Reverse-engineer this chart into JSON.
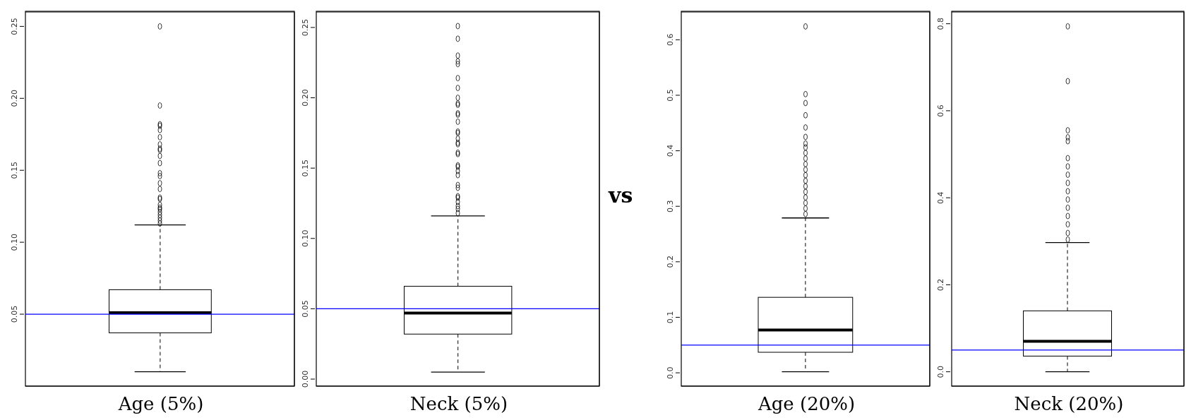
{
  "chart_data": [
    {
      "type": "box",
      "xlabel": "Age (5%)",
      "categories": [
        null
      ],
      "color": "#000000",
      "boxes": [
        {
          "low": 0.01,
          "q1": 0.037,
          "median": 0.051,
          "q3": 0.067,
          "high": 0.112,
          "outliers": [
            0.25,
            0.195,
            0.182,
            0.181,
            0.178,
            0.173,
            0.168,
            0.165,
            0.164,
            0.16,
            0.155,
            0.148,
            0.146,
            0.141,
            0.137,
            0.131,
            0.13,
            0.126,
            0.124,
            0.123,
            0.121,
            0.119,
            0.117,
            0.115,
            0.113
          ]
        }
      ],
      "ylim": [
        0.0,
        0.26
      ],
      "yticks": [
        0.05,
        {
          "value": 0.1,
          "label": "0.10"
        },
        0.15,
        {
          "value": 0.2,
          "label": "0.20"
        },
        0.25
      ],
      "ref_lines": [
        {
          "axis": "y",
          "value": 0.05,
          "color": "#0000ff"
        }
      ]
    },
    {
      "type": "box",
      "xlabel": "Neck (5%)",
      "categories": [
        null
      ],
      "color": "#000000",
      "boxes": [
        {
          "low": 0.005,
          "q1": 0.032,
          "median": 0.047,
          "q3": 0.066,
          "high": 0.116,
          "outliers": [
            0.251,
            0.242,
            0.23,
            0.226,
            0.224,
            0.214,
            0.207,
            0.2,
            0.196,
            0.195,
            0.189,
            0.188,
            0.183,
            0.176,
            0.175,
            0.171,
            0.168,
            0.167,
            0.161,
            0.16,
            0.152,
            0.151,
            0.148,
            0.145,
            0.138,
            0.136,
            0.13,
            0.129,
            0.126,
            0.123,
            0.121,
            0.118
          ]
        }
      ],
      "ylim": [
        -0.005,
        0.261
      ],
      "yticks": [
        {
          "value": 0,
          "label": "0.00"
        },
        0.05,
        {
          "value": 0.1,
          "label": "0.10"
        },
        0.15,
        {
          "value": 0.2,
          "label": "0.20"
        },
        0.25
      ],
      "ref_lines": [
        {
          "axis": "y",
          "value": 0.05,
          "color": "#0000ff"
        }
      ]
    },
    {
      "type": "box",
      "xlabel": "Age (20%)",
      "categories": [
        null
      ],
      "color": "#000000",
      "annotations": [
        "vs"
      ],
      "boxes": [
        {
          "low": 0.002,
          "q1": 0.037,
          "median": 0.077,
          "q3": 0.136,
          "high": 0.279,
          "outliers": [
            0.624,
            0.502,
            0.486,
            0.464,
            0.442,
            0.425,
            0.413,
            0.406,
            0.396,
            0.386,
            0.376,
            0.366,
            0.356,
            0.346,
            0.336,
            0.326,
            0.316,
            0.306,
            0.296,
            0.286
          ]
        }
      ],
      "ylim": [
        -0.024,
        0.65
      ],
      "yticks": [
        {
          "value": 0,
          "label": "0.0"
        },
        0.1,
        0.2,
        0.3,
        0.4,
        0.5,
        0.6
      ],
      "ref_lines": [
        {
          "axis": "y",
          "value": 0.05,
          "color": "#0000ff"
        }
      ]
    },
    {
      "type": "box",
      "xlabel": "Neck (20%)",
      "categories": [
        null
      ],
      "color": "#000000",
      "boxes": [
        {
          "low": 0.0,
          "q1": 0.036,
          "median": 0.07,
          "q3": 0.14,
          "high": 0.297,
          "outliers": [
            0.794,
            0.668,
            0.555,
            0.539,
            0.53,
            0.491,
            0.472,
            0.453,
            0.434,
            0.415,
            0.396,
            0.377,
            0.358,
            0.339,
            0.319,
            0.304
          ]
        }
      ],
      "ylim": [
        -0.033,
        0.827
      ],
      "yticks": [
        {
          "value": 0,
          "label": "0.0"
        },
        0.2,
        0.4,
        0.6,
        0.8
      ],
      "ref_lines": [
        {
          "axis": "y",
          "value": 0.05,
          "color": "#0000ff"
        }
      ]
    }
  ]
}
